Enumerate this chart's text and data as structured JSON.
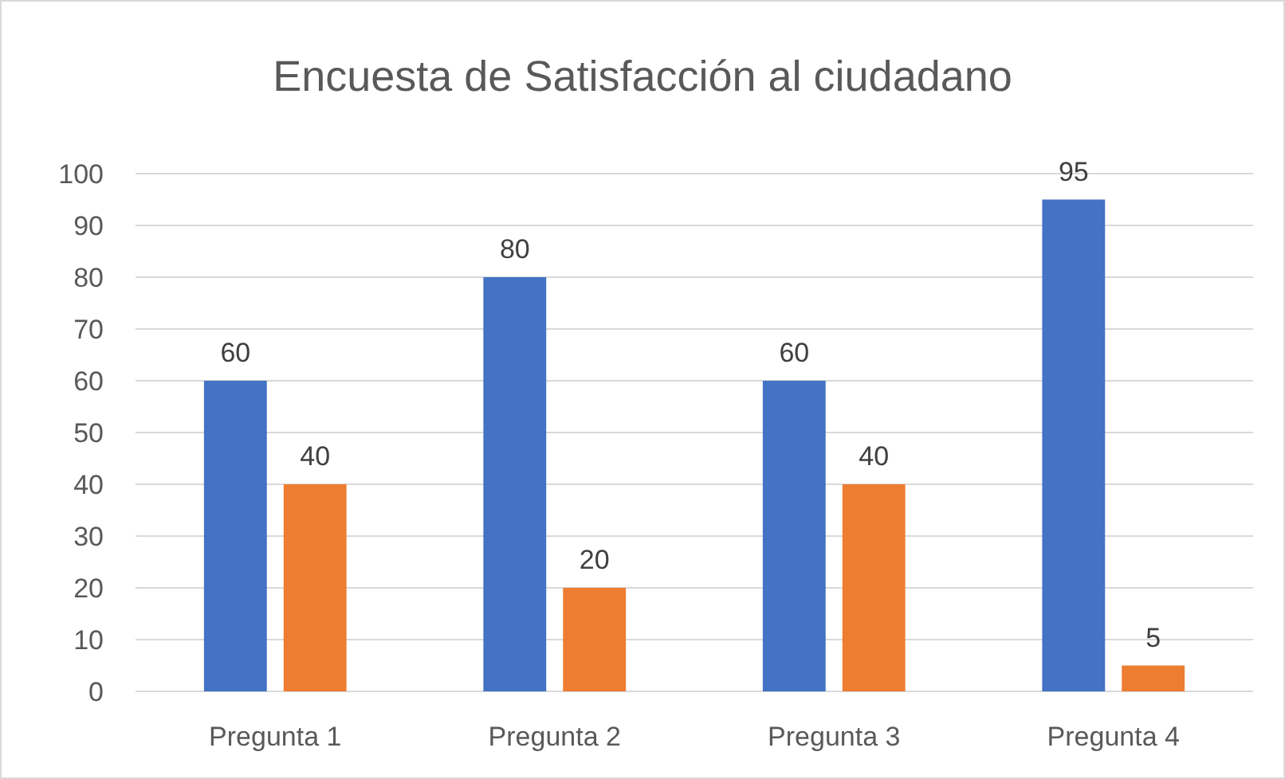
{
  "chart_data": {
    "type": "bar",
    "title": "Encuesta de Satisfacción al ciudadano",
    "categories": [
      "Pregunta 1",
      "Pregunta 2",
      "Pregunta 3",
      "Pregunta 4"
    ],
    "series": [
      {
        "color": "#4472c4",
        "values": [
          60,
          80,
          60,
          95
        ]
      },
      {
        "color": "#ed7d31",
        "values": [
          40,
          20,
          40,
          5
        ]
      }
    ],
    "ylim": [
      0,
      100
    ],
    "yticks": [
      0,
      10,
      20,
      30,
      40,
      50,
      60,
      70,
      80,
      90,
      100
    ],
    "grid": "y",
    "data_labels": true
  }
}
